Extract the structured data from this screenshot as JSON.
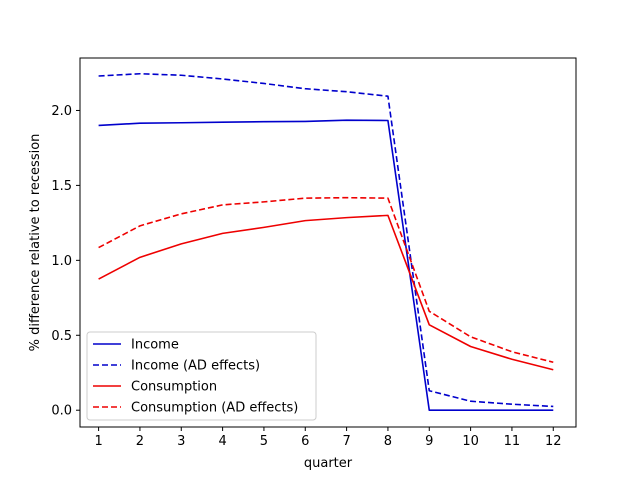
{
  "chart_data": {
    "type": "line",
    "title": "",
    "xlabel": "quarter",
    "ylabel": "% difference relative to recession",
    "x": [
      1,
      2,
      3,
      4,
      5,
      6,
      7,
      8,
      9,
      10,
      11,
      12
    ],
    "xlim": [
      0.55,
      12.55
    ],
    "ylim": [
      -0.112,
      2.35
    ],
    "xticks": [
      "1",
      "2",
      "3",
      "4",
      "5",
      "6",
      "7",
      "8",
      "9",
      "10",
      "11",
      "12"
    ],
    "yticks": [
      {
        "value": 0.0,
        "label": "0.0"
      },
      {
        "value": 0.5,
        "label": "0.5"
      },
      {
        "value": 1.0,
        "label": "1.0"
      },
      {
        "value": 1.5,
        "label": "1.5"
      },
      {
        "value": 2.0,
        "label": "2.0"
      }
    ],
    "grid": false,
    "legend_position": "lower-left",
    "series": [
      {
        "name": "Income",
        "color": "#0000cc",
        "style": "solid",
        "values": [
          1.9,
          1.915,
          1.918,
          1.922,
          1.925,
          1.927,
          1.935,
          1.933,
          0.0,
          0.0,
          0.0,
          0.0
        ]
      },
      {
        "name": "Income (AD effects)",
        "color": "#0000cc",
        "style": "dashed",
        "values": [
          2.23,
          2.245,
          2.235,
          2.21,
          2.18,
          2.145,
          2.125,
          2.095,
          0.13,
          0.06,
          0.04,
          0.025
        ]
      },
      {
        "name": "Consumption",
        "color": "#ee0000",
        "style": "solid",
        "values": [
          0.875,
          1.02,
          1.11,
          1.18,
          1.22,
          1.265,
          1.285,
          1.3,
          0.57,
          0.425,
          0.34,
          0.27
        ]
      },
      {
        "name": "Consumption (AD effects)",
        "color": "#ee0000",
        "style": "dashed",
        "values": [
          1.085,
          1.23,
          1.31,
          1.37,
          1.39,
          1.415,
          1.418,
          1.415,
          0.66,
          0.49,
          0.39,
          0.32
        ]
      }
    ]
  }
}
